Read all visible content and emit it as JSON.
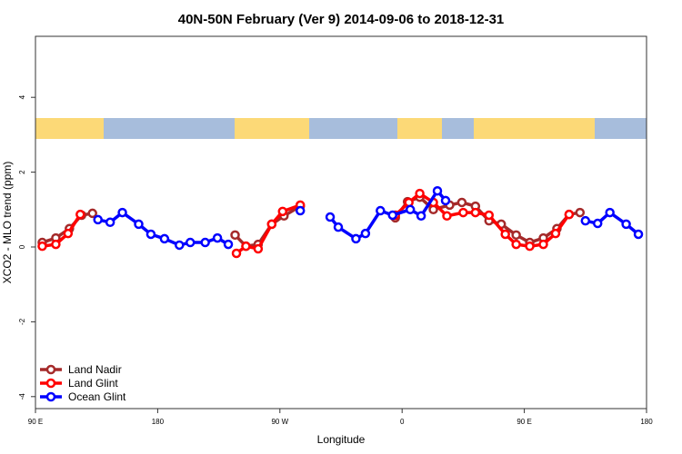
{
  "chart_data": {
    "type": "line",
    "title": "40N-50N February (Ver 9)   2014-09-06 to 2018-12-31",
    "xlabel": "Longitude",
    "ylabel": "XCO2 - MLO trend (ppm)",
    "xlim": [
      90,
      540
    ],
    "ylim": [
      -4.3,
      5.7
    ],
    "x_ticks": [
      {
        "value": 90,
        "label": "90 E"
      },
      {
        "value": 180,
        "label": "180"
      },
      {
        "value": 270,
        "label": "90 W"
      },
      {
        "value": 360,
        "label": "0"
      },
      {
        "value": 450,
        "label": "90 E"
      },
      {
        "value": 540,
        "label": "180"
      }
    ],
    "y_ticks": [
      {
        "value": 4,
        "label": "4"
      },
      {
        "value": 2,
        "label": "2"
      },
      {
        "value": 0,
        "label": "0"
      },
      {
        "value": -2,
        "label": "-2"
      },
      {
        "value": -4,
        "label": "-4"
      }
    ],
    "grid": false,
    "legend_position": "bottom-left",
    "land_ocean_strip": {
      "land_color": "#fcd977",
      "ocean_color": "#a7bddc"
    },
    "series": [
      {
        "name": "Land Nadir",
        "color": "#a52a2a",
        "segments": [
          [
            [
              95,
              0.12
            ],
            [
              105,
              0.24
            ],
            [
              115,
              0.49
            ],
            [
              124,
              0.85
            ],
            [
              132,
              0.9
            ]
          ],
          [
            [
              237,
              0.32
            ],
            [
              245,
              0.02
            ],
            [
              254,
              0.07
            ],
            [
              264,
              0.61
            ],
            [
              273,
              0.83
            ],
            [
              285,
              1.09
            ]
          ],
          [
            [
              355,
              0.78
            ],
            [
              364,
              1.21
            ],
            [
              373,
              1.33
            ],
            [
              383,
              1.0
            ],
            [
              395,
              1.12
            ],
            [
              404,
              1.19
            ],
            [
              414,
              1.09
            ],
            [
              424,
              0.7
            ],
            [
              433,
              0.61
            ],
            [
              444,
              0.32
            ],
            [
              454,
              0.12
            ],
            [
              464,
              0.24
            ],
            [
              474,
              0.49
            ],
            [
              483,
              0.87
            ],
            [
              491,
              0.92
            ]
          ]
        ]
      },
      {
        "name": "Land Glint",
        "color": "#ff0000",
        "segments": [
          [
            [
              95,
              0.02
            ],
            [
              105,
              0.07
            ],
            [
              114,
              0.36
            ],
            [
              123,
              0.87
            ]
          ],
          [
            [
              238,
              -0.17
            ],
            [
              245,
              0.02
            ],
            [
              254,
              -0.05
            ],
            [
              264,
              0.61
            ],
            [
              272,
              0.95
            ],
            [
              285,
              1.12
            ]
          ],
          [
            [
              355,
              0.85
            ],
            [
              365,
              1.19
            ],
            [
              373,
              1.43
            ],
            [
              383,
              1.19
            ],
            [
              393,
              0.83
            ],
            [
              405,
              0.92
            ],
            [
              414,
              0.92
            ],
            [
              424,
              0.85
            ],
            [
              436,
              0.34
            ],
            [
              444,
              0.07
            ],
            [
              454,
              0.02
            ],
            [
              464,
              0.07
            ],
            [
              473,
              0.36
            ],
            [
              483,
              0.87
            ]
          ]
        ]
      },
      {
        "name": "Ocean Glint",
        "color": "#0000ff",
        "segments": [
          [
            [
              136,
              0.73
            ],
            [
              145,
              0.66
            ],
            [
              154,
              0.92
            ],
            [
              166,
              0.61
            ],
            [
              175,
              0.34
            ],
            [
              185,
              0.22
            ],
            [
              196,
              0.05
            ],
            [
              204,
              0.12
            ],
            [
              215,
              0.12
            ],
            [
              224,
              0.24
            ],
            [
              232,
              0.07
            ]
          ],
          [
            [
              285,
              0.97
            ]
          ],
          [
            [
              307,
              0.8
            ],
            [
              313,
              0.53
            ],
            [
              326,
              0.22
            ],
            [
              333,
              0.36
            ],
            [
              344,
              0.97
            ],
            [
              353,
              0.85
            ],
            [
              366,
              1.0
            ],
            [
              374,
              0.83
            ],
            [
              386,
              1.5
            ],
            [
              392,
              1.24
            ]
          ],
          [
            [
              495,
              0.7
            ],
            [
              504,
              0.63
            ],
            [
              513,
              0.92
            ],
            [
              525,
              0.61
            ],
            [
              534,
              0.34
            ]
          ]
        ]
      }
    ]
  }
}
